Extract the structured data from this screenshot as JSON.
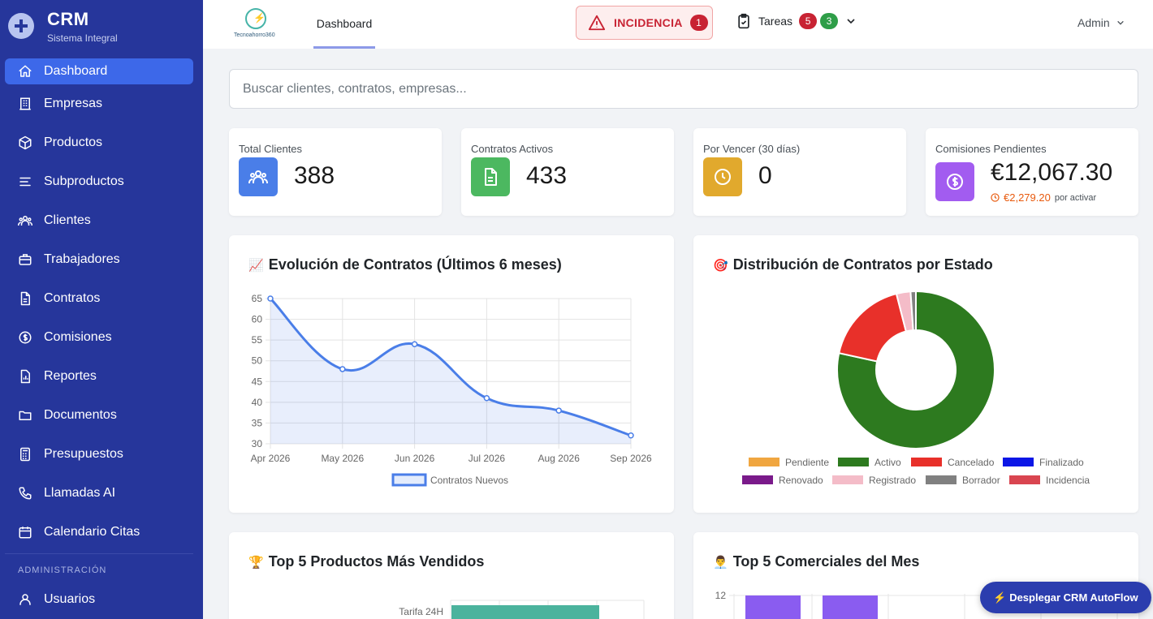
{
  "brand": {
    "title": "CRM",
    "subtitle": "Sistema Integral"
  },
  "sidebar": {
    "items": [
      {
        "label": "Dashboard",
        "icon": "home-icon"
      },
      {
        "label": "Empresas",
        "icon": "building-icon"
      },
      {
        "label": "Productos",
        "icon": "box-icon"
      },
      {
        "label": "Subproductos",
        "icon": "list-icon"
      },
      {
        "label": "Clientes",
        "icon": "users-icon"
      },
      {
        "label": "Trabajadores",
        "icon": "briefcase-icon"
      },
      {
        "label": "Contratos",
        "icon": "document-icon"
      },
      {
        "label": "Comisiones",
        "icon": "dollar-circle-icon"
      },
      {
        "label": "Reportes",
        "icon": "report-icon"
      },
      {
        "label": "Documentos",
        "icon": "folder-icon"
      },
      {
        "label": "Presupuestos",
        "icon": "calculator-icon"
      },
      {
        "label": "Llamadas AI",
        "icon": "phone-icon"
      },
      {
        "label": "Calendario Citas",
        "icon": "calendar-icon"
      }
    ],
    "section_label": "ADMINISTRACIÓN",
    "admin_items": [
      {
        "label": "Usuarios",
        "icon": "user-icon"
      }
    ]
  },
  "topbar": {
    "logo_text": "Tecnoahorro360",
    "tab": "Dashboard",
    "incidencia_label": "INCIDENCIA",
    "incidencia_count": "1",
    "tasks_label": "Tareas",
    "tasks_red": "5",
    "tasks_green": "3",
    "user": "Admin"
  },
  "search": {
    "placeholder": "Buscar clientes, contratos, empresas..."
  },
  "stats": [
    {
      "label": "Total Clientes",
      "value": "388",
      "color": "#4a7ee8",
      "icon": "users-icon"
    },
    {
      "label": "Contratos Activos",
      "value": "433",
      "color": "#4cb860",
      "icon": "document-icon"
    },
    {
      "label": "Por Vencer (30 días)",
      "value": "0",
      "color": "#e1a92d",
      "icon": "clock-icon"
    },
    {
      "label": "Comisiones Pendientes",
      "value": "€12,067.30",
      "color": "#a25cf0",
      "icon": "dollar-icon",
      "sub_value": "€2,279.20",
      "sub_label": "por activar"
    }
  ],
  "line_card": {
    "emoji": "📈",
    "title": "Evolución de Contratos (Últimos 6 meses)"
  },
  "donut_card": {
    "emoji": "🎯",
    "title": "Distribución de Contratos por Estado"
  },
  "products_card": {
    "emoji": "🏆",
    "title": "Top 5 Productos Más Vendidos"
  },
  "sales_card": {
    "emoji": "👨‍💼",
    "title": "Top 5 Comerciales del Mes"
  },
  "fab_label": "⚡ Desplegar CRM AutoFlow",
  "chart_data": [
    {
      "type": "line",
      "categories": [
        "Apr 2026",
        "May 2026",
        "Jun 2026",
        "Jul 2026",
        "Aug 2026",
        "Sep 2026"
      ],
      "series": [
        {
          "name": "Contratos Nuevos",
          "values": [
            65,
            48,
            54,
            41,
            38,
            32
          ]
        }
      ],
      "ylim": [
        30,
        65
      ],
      "yticks": [
        30,
        35,
        40,
        45,
        50,
        55,
        60,
        65
      ],
      "grid": true,
      "legend": "bottom",
      "color": "#4a7ee8"
    },
    {
      "type": "pie",
      "donut": true,
      "labels": [
        "Pendiente",
        "Activo",
        "Cancelado",
        "Finalizado",
        "Renovado",
        "Registrado",
        "Borrador",
        "Incidencia"
      ],
      "values": [
        0,
        433,
        97,
        0,
        0,
        16,
        6,
        0
      ],
      "colors": [
        "#f0a640",
        "#2d7a1f",
        "#e8302a",
        "#0b16e6",
        "#7a1a8a",
        "#f4bcc8",
        "#808080",
        "#d94550"
      ],
      "legend": "bottom"
    },
    {
      "type": "bar",
      "orientation": "horizontal",
      "categories": [
        "Tarifa 24H"
      ],
      "values": [
        null
      ],
      "color": "#4bb39d"
    },
    {
      "type": "bar",
      "yticks": [
        12
      ],
      "color": "#8a5cf0"
    }
  ]
}
